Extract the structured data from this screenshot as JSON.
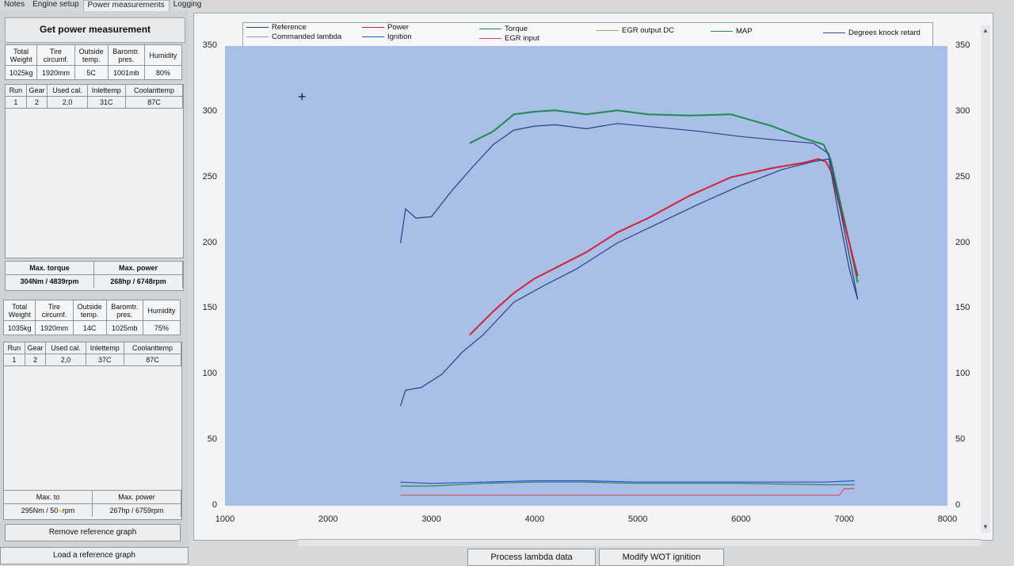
{
  "tabs": [
    "Notes",
    "Engine setup",
    "Power measurements",
    "Logging"
  ],
  "panel_title": "Get power measurement",
  "info_headers": [
    [
      "Total",
      "Weight"
    ],
    [
      "Tire",
      "circumf."
    ],
    [
      "Outside",
      "temp."
    ],
    [
      "Baromtr.",
      "pres."
    ],
    [
      "Humidity"
    ]
  ],
  "measurement1": {
    "info": [
      "1025kg",
      "1920mm",
      "5C",
      "1001mb",
      "80%"
    ],
    "run_headers": [
      "Run",
      "Gear",
      "Used cal.",
      "Inlettemp",
      "Coolanttemp"
    ],
    "run": [
      "1",
      "2",
      "2,0",
      "31C",
      "87C"
    ],
    "max_torque_label": "Max. torque",
    "max_power_label": "Max. power",
    "max_torque": "304Nm / 4839rpm",
    "max_power": "268hp / 6748rpm"
  },
  "measurement2": {
    "info": [
      "1035kg",
      "1920mm",
      "14C",
      "1025mb",
      "75%"
    ],
    "run_headers": [
      "Run",
      "Gear",
      "Used cal.",
      "Inlettemp",
      "Coolanttemp"
    ],
    "run": [
      "1",
      "2",
      "2,0",
      "37C",
      "87C"
    ],
    "max_torque_label": "Max. to",
    "max_power_label": "Max. power",
    "max_torque": "295Nm / 50",
    "max_torque_tail": "rpm",
    "max_power": "267hp / 6759rpm"
  },
  "buttons": {
    "remove_ref": "Remove reference graph",
    "load_ref": "Load a reference graph",
    "process_lambda": "Process lambda data",
    "modify_wot": "Modify WOT ignition"
  },
  "legend": [
    {
      "label": "Reference",
      "color": "#2b3f7a"
    },
    {
      "label": "Commanded lambda",
      "color": "#8aa0a0"
    },
    {
      "label": "Power",
      "color": "#d0233a"
    },
    {
      "label": "Ignition",
      "color": "#2a4fd0"
    },
    {
      "label": "Torque",
      "color": "#1f8a50"
    },
    {
      "label": "EGR input",
      "color": "#d05060"
    },
    {
      "label": "EGR output DC",
      "color": "#9aaa60"
    },
    {
      "label": "MAP",
      "color": "#2a8a5a"
    },
    {
      "label": "Degrees knock retard",
      "color": "#3a4a7a"
    }
  ],
  "chart_data": {
    "type": "line",
    "xlim": [
      1000,
      8000
    ],
    "ylim": [
      0,
      350
    ],
    "x_ticks": [
      1000,
      2000,
      3000,
      4000,
      5000,
      6000,
      7000,
      8000
    ],
    "y_ticks": [
      0,
      50,
      100,
      150,
      200,
      250,
      300,
      350
    ],
    "series": [
      {
        "name": "Torque",
        "color": "#1f8a50",
        "x": [
          3370,
          3600,
          3800,
          4000,
          4200,
          4500,
          4800,
          5100,
          5500,
          5900,
          6300,
          6600,
          6800,
          6870,
          6950,
          7050,
          7130
        ],
        "y": [
          276,
          285,
          298,
          300,
          301,
          298,
          301,
          298,
          297,
          298,
          289,
          280,
          275,
          263,
          235,
          200,
          170
        ]
      },
      {
        "name": "Power",
        "color": "#d0233a",
        "x": [
          3370,
          3600,
          3800,
          4000,
          4200,
          4500,
          4800,
          5100,
          5500,
          5900,
          6300,
          6600,
          6750,
          6820,
          6870,
          6950,
          7050,
          7130
        ],
        "y": [
          130,
          148,
          162,
          173,
          181,
          193,
          208,
          219,
          236,
          250,
          257,
          261,
          264,
          262,
          255,
          230,
          200,
          175
        ]
      },
      {
        "name": "Reference",
        "color": "#2b3f7a",
        "x": [
          2700,
          2750,
          2850,
          3000,
          3200,
          3400,
          3600,
          3800,
          4000,
          4200,
          4500,
          4800,
          5200,
          5600,
          6000,
          6400,
          6700,
          6850,
          6950,
          7050,
          7130
        ],
        "y": [
          200,
          226,
          219,
          220,
          240,
          258,
          275,
          286,
          289,
          290,
          287,
          291,
          288,
          285,
          281,
          278,
          276,
          268,
          230,
          190,
          157
        ]
      },
      {
        "name": "Reference power",
        "color": "#2b3f7a",
        "x": [
          2700,
          2750,
          2900,
          3100,
          3300,
          3500,
          3800,
          4100,
          4400,
          4800,
          5200,
          5600,
          6000,
          6400,
          6700,
          6850,
          6950,
          7050,
          7130
        ],
        "y": [
          76,
          88,
          90,
          100,
          117,
          130,
          155,
          168,
          180,
          200,
          215,
          230,
          244,
          256,
          262,
          264,
          220,
          180,
          157
        ]
      },
      {
        "name": "MAP",
        "color": "#2a8a5a",
        "x": [
          2700,
          3000,
          3500,
          4000,
          4500,
          5000,
          6000,
          6800,
          7100
        ],
        "y": [
          15,
          15,
          17,
          18,
          18,
          17,
          17,
          16,
          16
        ]
      },
      {
        "name": "Ignition",
        "color": "#2a4fd0",
        "x": [
          2700,
          3000,
          3500,
          4000,
          4500,
          5000,
          6000,
          6800,
          7100
        ],
        "y": [
          18,
          17,
          18,
          19,
          19,
          18,
          18,
          18,
          19
        ]
      },
      {
        "name": "EGR input",
        "color": "#d05060",
        "x": [
          2700,
          3500,
          4500,
          5500,
          6500,
          6950,
          7000,
          7100
        ],
        "y": [
          8,
          8,
          8,
          8,
          8,
          8,
          13,
          13
        ]
      }
    ]
  }
}
